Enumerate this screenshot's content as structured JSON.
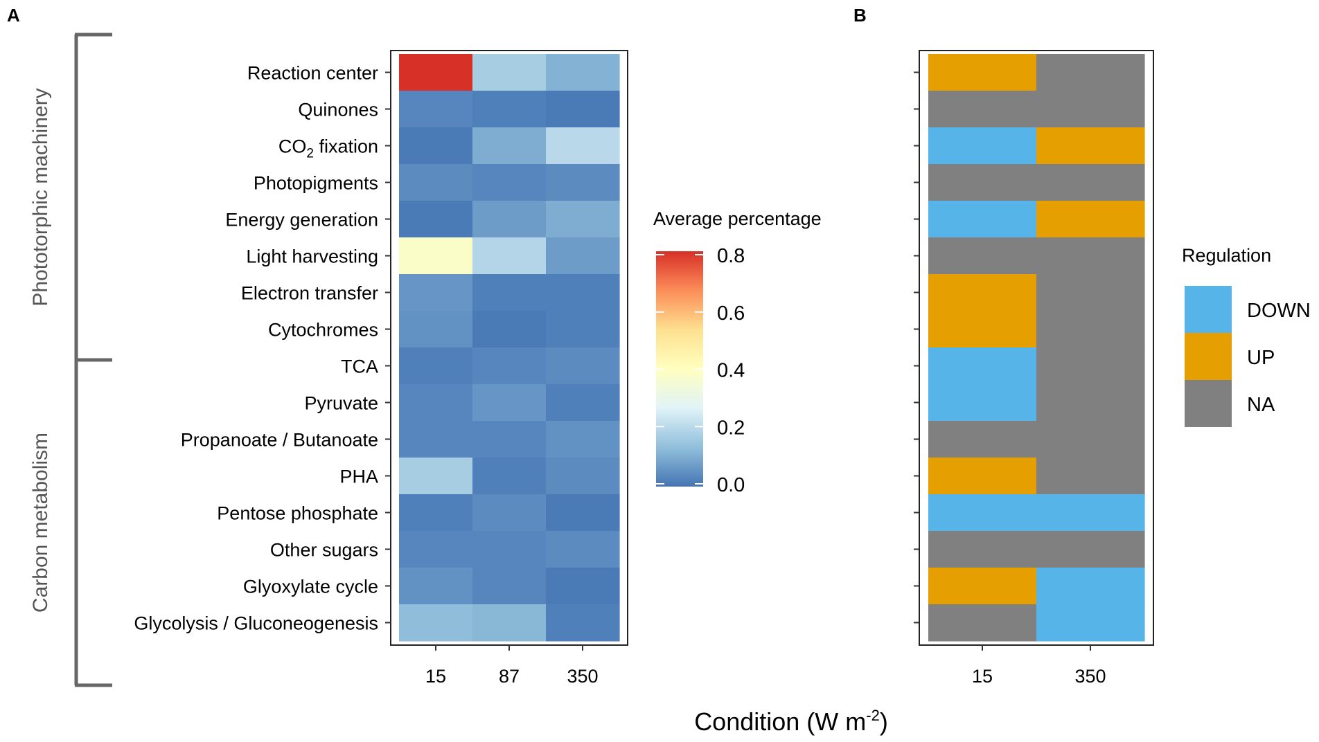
{
  "panel_labels": {
    "a": "A",
    "b": "B"
  },
  "groups": [
    {
      "label": "Phototorphic machinery",
      "rows": 8
    },
    {
      "label": "Carbon metabolism",
      "rows": 8
    }
  ],
  "xaxis_title": {
    "main": "Condition (W m",
    "sup": "-2",
    "end": ")"
  },
  "chart_data": [
    {
      "type": "heatmap",
      "panel": "A",
      "title": "",
      "rows": [
        {
          "text": "Reaction center"
        },
        {
          "text": "Quinones"
        },
        {
          "text": "CO",
          "sub": "2",
          "rest": " fixation"
        },
        {
          "text": "Photopigments"
        },
        {
          "text": "Energy generation"
        },
        {
          "text": "Light harvesting"
        },
        {
          "text": "Electron transfer"
        },
        {
          "text": "Cytochromes"
        },
        {
          "text": "TCA"
        },
        {
          "text": "Pyruvate"
        },
        {
          "text": "Propanoate / Butanoate"
        },
        {
          "text": "PHA"
        },
        {
          "text": "Pentose phosphate"
        },
        {
          "text": "Other sugars"
        },
        {
          "text": "Glyoxylate cycle"
        },
        {
          "text": "Glycolysis / Gluconeogenesis"
        }
      ],
      "columns": [
        "15",
        "87",
        "350"
      ],
      "values": [
        [
          0.8,
          0.17,
          0.11
        ],
        [
          0.03,
          0.02,
          0.01
        ],
        [
          0.01,
          0.1,
          0.2
        ],
        [
          0.04,
          0.03,
          0.04
        ],
        [
          0.01,
          0.07,
          0.1
        ],
        [
          0.38,
          0.19,
          0.07
        ],
        [
          0.06,
          0.02,
          0.02
        ],
        [
          0.05,
          0.01,
          0.02
        ],
        [
          0.02,
          0.03,
          0.04
        ],
        [
          0.03,
          0.06,
          0.02
        ],
        [
          0.03,
          0.03,
          0.05
        ],
        [
          0.17,
          0.02,
          0.04
        ],
        [
          0.02,
          0.04,
          0.01
        ],
        [
          0.03,
          0.03,
          0.04
        ],
        [
          0.05,
          0.03,
          0.01
        ],
        [
          0.13,
          0.12,
          0.02
        ]
      ],
      "colorbar": {
        "title": "Average percentage",
        "range": [
          0,
          0.8
        ],
        "ticks": [
          "0.8",
          "0.6",
          "0.4",
          "0.2",
          "0.0"
        ],
        "tick_values": [
          0.8,
          0.6,
          0.4,
          0.2,
          0.0
        ],
        "colors": [
          "#4575b4",
          "#91bfdb",
          "#e0f3f8",
          "#ffffbf",
          "#fee090",
          "#fc8d59",
          "#d73027"
        ]
      }
    },
    {
      "type": "heatmap",
      "panel": "B",
      "title": "",
      "columns": [
        "15",
        "350"
      ],
      "values": [
        [
          "UP",
          "NA"
        ],
        [
          "NA",
          "NA"
        ],
        [
          "DOWN",
          "UP"
        ],
        [
          "NA",
          "NA"
        ],
        [
          "DOWN",
          "UP"
        ],
        [
          "NA",
          "NA"
        ],
        [
          "UP",
          "NA"
        ],
        [
          "UP",
          "NA"
        ],
        [
          "DOWN",
          "NA"
        ],
        [
          "DOWN",
          "NA"
        ],
        [
          "NA",
          "NA"
        ],
        [
          "UP",
          "NA"
        ],
        [
          "DOWN",
          "DOWN"
        ],
        [
          "NA",
          "NA"
        ],
        [
          "UP",
          "DOWN"
        ],
        [
          "NA",
          "DOWN"
        ]
      ],
      "legend": {
        "title": "Regulation",
        "items": [
          {
            "label": "DOWN",
            "color": "#56B4E9"
          },
          {
            "label": "UP",
            "color": "#E69F00"
          },
          {
            "label": "NA",
            "color": "#808080"
          }
        ]
      }
    }
  ]
}
